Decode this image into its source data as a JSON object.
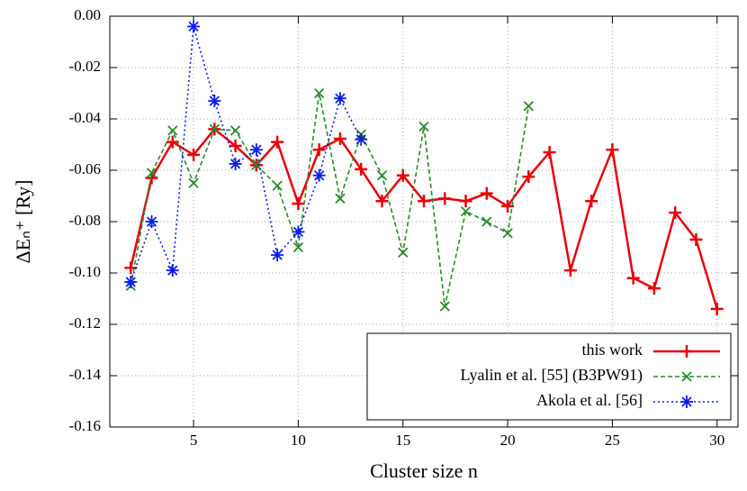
{
  "chart_data": {
    "type": "line",
    "x_label": "Cluster size n",
    "y_label": "ΔEₙ⁺ [Ry]",
    "xlim": [
      1,
      31
    ],
    "ylim": [
      -0.16,
      0
    ],
    "xticks": [
      5,
      10,
      15,
      20,
      25,
      30
    ],
    "yticks": [
      {
        "value": 0,
        "label": "0.00"
      },
      {
        "value": -0.02,
        "label": "-0.02"
      },
      {
        "value": -0.04,
        "label": "-0.04"
      },
      {
        "value": -0.06,
        "label": "-0.06"
      },
      {
        "value": -0.08,
        "label": "-0.08"
      },
      {
        "value": -0.1,
        "label": "-0.10"
      },
      {
        "value": -0.12,
        "label": "-0.12"
      },
      {
        "value": -0.14,
        "label": "-0.14"
      },
      {
        "value": -0.16,
        "label": "-0.16"
      }
    ],
    "grid": true,
    "legend": "lower right",
    "series": [
      {
        "name": "this work",
        "color": "#e8000b",
        "marker": "plus",
        "line_style": "solid",
        "x": [
          2,
          3,
          4,
          5,
          6,
          7,
          8,
          9,
          10,
          11,
          12,
          13,
          14,
          15,
          16,
          17,
          18,
          19,
          20,
          21,
          22,
          23,
          24,
          25,
          26,
          27,
          28,
          29,
          30
        ],
        "values": [
          -0.098,
          -0.063,
          -0.049,
          -0.054,
          -0.044,
          -0.0505,
          -0.058,
          -0.049,
          -0.073,
          -0.052,
          -0.0477,
          -0.0596,
          -0.072,
          -0.062,
          -0.072,
          -0.071,
          -0.072,
          -0.069,
          -0.074,
          -0.0625,
          -0.053,
          -0.099,
          -0.072,
          -0.052,
          -0.102,
          -0.106,
          -0.0765,
          -0.087,
          -0.114
        ]
      },
      {
        "name": "Lyalin et al. [55] (B3PW91)",
        "color": "#2a8a2a",
        "marker": "cross",
        "line_style": "dashed",
        "x": [
          2,
          3,
          4,
          5,
          6,
          7,
          8,
          9,
          10,
          11,
          12,
          13,
          14,
          15,
          16,
          17,
          18,
          19,
          20,
          21
        ],
        "values": [
          -0.105,
          -0.061,
          -0.0445,
          -0.065,
          -0.044,
          -0.0445,
          -0.058,
          -0.066,
          -0.09,
          -0.03,
          -0.071,
          -0.046,
          -0.062,
          -0.092,
          -0.043,
          -0.113,
          -0.076,
          -0.08,
          -0.0845,
          -0.035
        ]
      },
      {
        "name": "Akola et al. [56]",
        "color": "#0a1ee6",
        "marker": "star",
        "line_style": "dotted",
        "x": [
          2,
          3,
          4,
          5,
          6,
          7,
          8,
          9,
          10,
          11,
          12,
          13
        ],
        "values": [
          -0.1035,
          -0.08,
          -0.099,
          -0.004,
          -0.033,
          -0.0575,
          -0.052,
          -0.093,
          -0.084,
          -0.062,
          -0.032,
          -0.048
        ]
      }
    ]
  }
}
